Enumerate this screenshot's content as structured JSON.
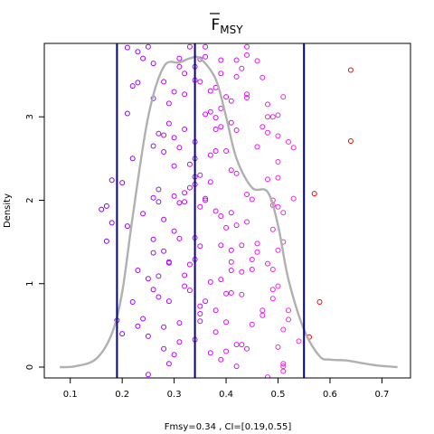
{
  "chart_data": {
    "type": "scatter",
    "title_main": "F",
    "title_sub": "MSY",
    "title_overline": true,
    "ylabel": "Density",
    "footnote": "Fmsy=0.34 , CI=[0.19,0.55]",
    "xlim": [
      0.05,
      0.755
    ],
    "ylim": [
      -0.13,
      3.88
    ],
    "x_ticks": [
      0.1,
      0.2,
      0.3,
      0.4,
      0.5,
      0.6,
      0.7
    ],
    "x_tick_labels": [
      "0.1",
      "0.2",
      "0.3",
      "0.4",
      "0.5",
      "0.6",
      "0.7"
    ],
    "y_ticks": [
      0,
      1,
      2,
      3
    ],
    "y_tick_labels": [
      "0",
      "1",
      "2",
      "3"
    ],
    "y_tick_labels_rotated": true,
    "grid": false,
    "vlines": [
      {
        "x": 0.19,
        "color": "#00008b"
      },
      {
        "x": 0.34,
        "color": "#00008b"
      },
      {
        "x": 0.55,
        "color": "#00008b"
      }
    ],
    "density_curve": {
      "color": "#b0b0b0",
      "x": [
        0.08,
        0.11,
        0.15,
        0.18,
        0.2,
        0.22,
        0.25,
        0.28,
        0.31,
        0.33,
        0.35,
        0.38,
        0.4,
        0.42,
        0.45,
        0.48,
        0.5,
        0.52,
        0.55,
        0.58,
        0.6,
        0.63,
        0.66,
        0.69,
        0.73
      ],
      "y": [
        0.0,
        0.01,
        0.1,
        0.4,
        0.9,
        1.8,
        3.0,
        3.6,
        3.65,
        3.7,
        3.7,
        3.45,
        3.0,
        2.5,
        2.15,
        2.1,
        1.7,
        1.05,
        0.45,
        0.13,
        0.09,
        0.08,
        0.05,
        0.02,
        0.0
      ]
    },
    "color_scale": {
      "low": "#7a00ff",
      "mid": "#cc00ff",
      "high": "#ff2ad9",
      "outlier": "#ff0000"
    },
    "points": [
      [
        0.16,
        1.89
      ],
      [
        0.17,
        1.93
      ],
      [
        0.18,
        1.73
      ],
      [
        0.17,
        1.51
      ],
      [
        0.18,
        2.24
      ],
      [
        0.19,
        0.56
      ],
      [
        0.2,
        0.4
      ],
      [
        0.2,
        2.21
      ],
      [
        0.21,
        1.69
      ],
      [
        0.21,
        3.04
      ],
      [
        0.21,
        3.83
      ],
      [
        0.22,
        3.37
      ],
      [
        0.22,
        0.78
      ],
      [
        0.22,
        2.5
      ],
      [
        0.23,
        3.78
      ],
      [
        0.23,
        1.16
      ],
      [
        0.23,
        0.49
      ],
      [
        0.23,
        3.41
      ],
      [
        0.24,
        3.7
      ],
      [
        0.24,
        0.58
      ],
      [
        0.24,
        1.84
      ],
      [
        0.25,
        3.84
      ],
      [
        0.25,
        1.06
      ],
      [
        0.25,
        0.37
      ],
      [
        0.25,
        -0.09
      ],
      [
        0.26,
        2.03
      ],
      [
        0.26,
        0.93
      ],
      [
        0.26,
        1.53
      ],
      [
        0.26,
        3.64
      ],
      [
        0.26,
        3.22
      ],
      [
        0.26,
        2.65
      ],
      [
        0.26,
        1.37
      ],
      [
        0.27,
        2.8
      ],
      [
        0.27,
        0.84
      ],
      [
        0.27,
        1.09
      ],
      [
        0.27,
        2.13
      ],
      [
        0.27,
        1.98
      ],
      [
        0.28,
        0.22
      ],
      [
        0.28,
        3.42
      ],
      [
        0.28,
        2.78
      ],
      [
        0.28,
        2.58
      ],
      [
        0.28,
        1.77
      ],
      [
        0.28,
        1.39
      ],
      [
        0.28,
        0.48
      ],
      [
        0.29,
        2.92
      ],
      [
        0.29,
        1.26
      ],
      [
        0.29,
        0.79
      ],
      [
        0.29,
        1.25
      ],
      [
        0.29,
        3.16
      ],
      [
        0.29,
        0.04
      ],
      [
        0.3,
        2.41
      ],
      [
        0.3,
        3.3
      ],
      [
        0.3,
        0.15
      ],
      [
        0.3,
        1.63
      ],
      [
        0.3,
        2.05
      ],
      [
        0.3,
        2.75
      ],
      [
        0.31,
        0.53
      ],
      [
        0.31,
        1.97
      ],
      [
        0.31,
        1.54
      ],
      [
        0.31,
        2.63
      ],
      [
        0.31,
        3.6
      ],
      [
        0.31,
        0.3
      ],
      [
        0.31,
        3.7
      ],
      [
        0.32,
        3.52
      ],
      [
        0.32,
        2.09
      ],
      [
        0.32,
        2.85
      ],
      [
        0.32,
        1.98
      ],
      [
        0.32,
        0.97
      ],
      [
        0.32,
        1.1
      ],
      [
        0.32,
        3.27
      ],
      [
        0.33,
        0.92
      ],
      [
        0.33,
        2.15
      ],
      [
        0.33,
        3.84
      ],
      [
        0.33,
        1.23
      ],
      [
        0.33,
        2.43
      ],
      [
        0.34,
        3.44
      ],
      [
        0.34,
        1.29
      ],
      [
        0.34,
        2.19
      ],
      [
        0.34,
        3.6
      ],
      [
        0.34,
        2.28
      ],
      [
        0.34,
        0.33
      ],
      [
        0.34,
        1.55
      ],
      [
        0.34,
        2.5
      ],
      [
        0.34,
        2.7
      ],
      [
        0.35,
        0.73
      ],
      [
        0.35,
        0.64
      ],
      [
        0.35,
        3.69
      ],
      [
        0.35,
        2.3
      ],
      [
        0.35,
        3.42
      ],
      [
        0.35,
        0.55
      ],
      [
        0.35,
        1.92
      ],
      [
        0.35,
        1.45
      ],
      [
        0.36,
        2.0
      ],
      [
        0.36,
        3.03
      ],
      [
        0.36,
        3.98
      ],
      [
        0.36,
        0.79
      ],
      [
        0.36,
        2.02
      ],
      [
        0.36,
        3.72
      ],
      [
        0.36,
        3.84
      ],
      [
        0.37,
        0.17
      ],
      [
        0.37,
        2.22
      ],
      [
        0.37,
        3.31
      ],
      [
        0.37,
        1.02
      ],
      [
        0.37,
        2.54
      ],
      [
        0.37,
        3.06
      ],
      [
        0.38,
        2.99
      ],
      [
        0.38,
        3.35
      ],
      [
        0.38,
        0.68
      ],
      [
        0.38,
        2.59
      ],
      [
        0.38,
        0.42
      ],
      [
        0.38,
        1.87
      ],
      [
        0.38,
        2.85
      ],
      [
        0.39,
        3.68
      ],
      [
        0.39,
        1.46
      ],
      [
        0.39,
        1.81
      ],
      [
        0.39,
        3.1
      ],
      [
        0.39,
        3.52
      ],
      [
        0.39,
        1.05
      ],
      [
        0.39,
        2.88
      ],
      [
        0.39,
        0.09
      ],
      [
        0.4,
        1.67
      ],
      [
        0.4,
        3.24
      ],
      [
        0.4,
        0.88
      ],
      [
        0.4,
        3.92
      ],
      [
        0.4,
        0.54
      ],
      [
        0.4,
        2.59
      ],
      [
        0.4,
        0.19
      ],
      [
        0.41,
        1.4
      ],
      [
        0.41,
        1.85
      ],
      [
        0.41,
        2.36
      ],
      [
        0.41,
        3.19
      ],
      [
        0.41,
        0.89
      ],
      [
        0.41,
        2.93
      ],
      [
        0.41,
        1.16
      ],
      [
        0.41,
        1.26
      ],
      [
        0.42,
        2.84
      ],
      [
        0.42,
        3.68
      ],
      [
        0.42,
        0.27
      ],
      [
        0.42,
        1.7
      ],
      [
        0.42,
        2.32
      ],
      [
        0.42,
        3.48
      ],
      [
        0.42,
        0.01
      ],
      [
        0.43,
        0.27
      ],
      [
        0.43,
        3.58
      ],
      [
        0.43,
        1.46
      ],
      [
        0.43,
        1.14
      ],
      [
        0.43,
        0.87
      ],
      [
        0.44,
        3.74
      ],
      [
        0.44,
        0.22
      ],
      [
        0.44,
        2.07
      ],
      [
        0.44,
        1.74
      ],
      [
        0.44,
        3.27
      ],
      [
        0.44,
        3.23
      ],
      [
        0.44,
        3.84
      ],
      [
        0.45,
        1.17
      ],
      [
        0.45,
        1.29
      ],
      [
        0.45,
        0.51
      ],
      [
        0.45,
        2.01
      ],
      [
        0.46,
        1.38
      ],
      [
        0.46,
        2.64
      ],
      [
        0.46,
        1.48
      ],
      [
        0.46,
        3.67
      ],
      [
        0.47,
        3.47
      ],
      [
        0.47,
        2.88
      ],
      [
        0.47,
        0.62
      ],
      [
        0.47,
        0.68
      ],
      [
        0.48,
        3.15
      ],
      [
        0.48,
        1.24
      ],
      [
        0.48,
        2.81
      ],
      [
        0.48,
        3.0
      ],
      [
        0.48,
        -0.12
      ],
      [
        0.48,
        2.25
      ],
      [
        0.49,
        2.0
      ],
      [
        0.49,
        1.94
      ],
      [
        0.49,
        0.93
      ],
      [
        0.49,
        3.0
      ],
      [
        0.49,
        0.82
      ],
      [
        0.49,
        1.65
      ],
      [
        0.49,
        1.17
      ],
      [
        0.5,
        2.27
      ],
      [
        0.5,
        2.77
      ],
      [
        0.5,
        2.46
      ],
      [
        0.5,
        3.02
      ],
      [
        0.5,
        1.92
      ],
      [
        0.5,
        0.97
      ],
      [
        0.5,
        0.24
      ],
      [
        0.5,
        1.4
      ],
      [
        0.51,
        1.5
      ],
      [
        0.51,
        -0.05
      ],
      [
        0.51,
        3.24
      ],
      [
        0.51,
        1.85
      ],
      [
        0.51,
        0.45
      ],
      [
        0.51,
        0.04
      ],
      [
        0.51,
        0.01
      ],
      [
        0.52,
        2.7
      ],
      [
        0.52,
        0.68
      ],
      [
        0.52,
        0.57
      ],
      [
        0.53,
        2.63
      ],
      [
        0.53,
        2.02
      ],
      [
        0.54,
        0.31
      ],
      [
        0.56,
        0.36
      ],
      [
        0.57,
        2.08
      ],
      [
        0.58,
        0.78
      ],
      [
        0.64,
        3.56
      ],
      [
        0.64,
        2.71
      ]
    ]
  }
}
